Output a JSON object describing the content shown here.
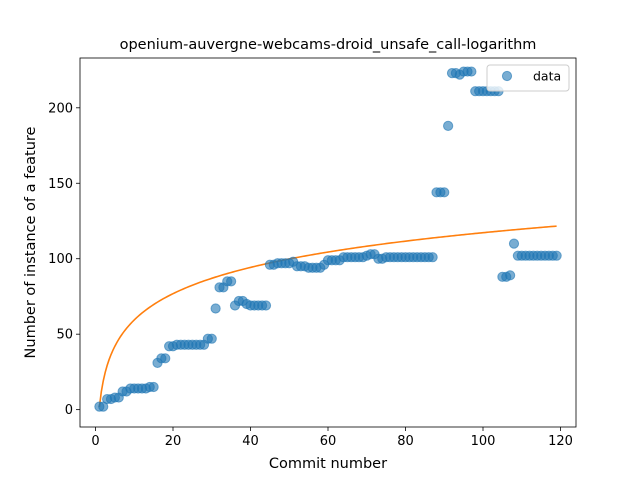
{
  "chart_data": {
    "type": "scatter",
    "title": "openium-auvergne-webcams-droid_unsafe_call-logarithm",
    "xlabel": "Commit number",
    "ylabel": "Number of instance of a feature",
    "xlim": [
      -4,
      124
    ],
    "ylim": [
      -11.5,
      233
    ],
    "xticks": [
      0,
      20,
      40,
      60,
      80,
      100,
      120
    ],
    "yticks": [
      0,
      50,
      100,
      150,
      200
    ],
    "legend": {
      "label": "data",
      "position": "top-right"
    },
    "colors": {
      "data": "#1f77b4",
      "fit": "#ff7f0e"
    },
    "series": [
      {
        "name": "data",
        "style": "markers",
        "x": [
          1,
          2,
          3,
          4,
          5,
          6,
          7,
          8,
          9,
          10,
          11,
          12,
          13,
          14,
          15,
          16,
          17,
          18,
          19,
          20,
          21,
          22,
          23,
          24,
          25,
          26,
          27,
          28,
          29,
          30,
          31,
          32,
          33,
          34,
          35,
          36,
          37,
          38,
          39,
          40,
          41,
          42,
          43,
          44,
          45,
          46,
          47,
          48,
          49,
          50,
          51,
          52,
          53,
          54,
          55,
          56,
          57,
          58,
          59,
          60,
          61,
          62,
          63,
          64,
          65,
          66,
          67,
          68,
          69,
          70,
          71,
          72,
          73,
          74,
          75,
          76,
          77,
          78,
          79,
          80,
          81,
          82,
          83,
          84,
          85,
          86,
          87,
          88,
          89,
          90,
          91,
          92,
          93,
          94,
          95,
          96,
          97,
          98,
          99,
          100,
          101,
          102,
          103,
          104,
          105,
          106,
          107,
          108,
          109,
          110,
          111,
          112,
          113,
          114,
          115,
          116,
          117,
          118,
          119
        ],
        "y": [
          2,
          2,
          7,
          7,
          8,
          8,
          12,
          12,
          14,
          14,
          14,
          14,
          14,
          15,
          15,
          31,
          34,
          34,
          42,
          42,
          43,
          43,
          43,
          43,
          43,
          43,
          43,
          43,
          47,
          47,
          67,
          81,
          81,
          85,
          85,
          69,
          72,
          72,
          70,
          69,
          69,
          69,
          69,
          69,
          96,
          96,
          97,
          97,
          97,
          97,
          98,
          95,
          95,
          95,
          94,
          94,
          94,
          94,
          96,
          99,
          99,
          99,
          99,
          101,
          101,
          101,
          101,
          101,
          101,
          102,
          103,
          103,
          100,
          100,
          101,
          101,
          101,
          101,
          101,
          101,
          101,
          101,
          101,
          101,
          101,
          101,
          101,
          144,
          144,
          144,
          188,
          223,
          223,
          222,
          224,
          224,
          224,
          211,
          211,
          211,
          211,
          211,
          211,
          211,
          88,
          88,
          89,
          110,
          102,
          102,
          102,
          102,
          102,
          102,
          102,
          102,
          102,
          102,
          102
        ]
      },
      {
        "name": "logarithmic fit",
        "style": "line",
        "model": "y = a + b*ln(x)",
        "a": 1.65,
        "b": 25.1,
        "x_range": [
          1,
          119
        ]
      }
    ]
  }
}
